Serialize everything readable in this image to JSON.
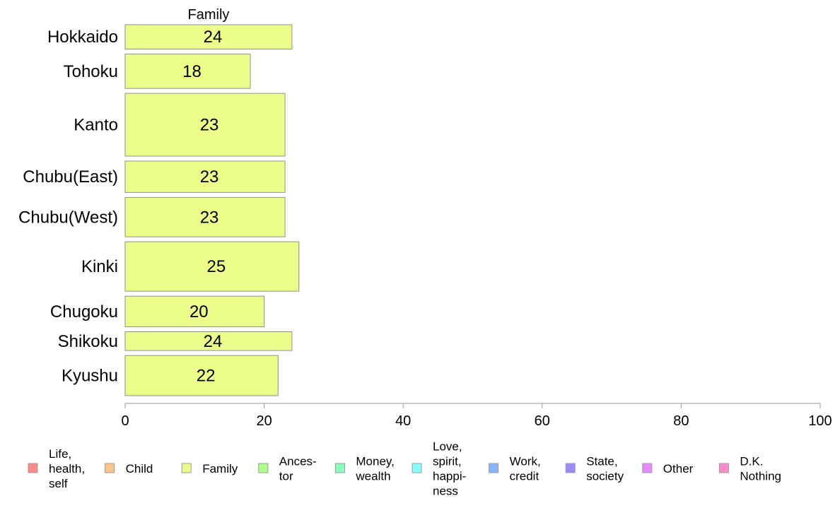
{
  "chart_data": {
    "type": "bar",
    "orientation": "horizontal",
    "title": "",
    "series_title": "Family",
    "xlabel": "",
    "ylabel": "",
    "xlim": [
      0,
      100
    ],
    "x_ticks": [
      "0",
      "20",
      "40",
      "60",
      "80",
      "100"
    ],
    "categories": [
      "Hokkaido",
      "Tohoku",
      "Kanto",
      "Chubu(East)",
      "Chubu(West)",
      "Kinki",
      "Chugoku",
      "Shikoku",
      "Kyushu"
    ],
    "values": [
      24,
      18,
      23,
      23,
      23,
      25,
      20,
      24,
      22
    ],
    "value_labels": [
      "24",
      "18",
      "23",
      "23",
      "23",
      "25",
      "20",
      "24",
      "22"
    ],
    "bar_widths_relative": [
      0.97,
      1.37,
      2.5,
      1.25,
      1.57,
      1.97,
      1.22,
      0.75,
      1.6
    ],
    "bar_color": "#ebff8a",
    "grid": false,
    "legend_position": "bottom",
    "legend": [
      {
        "lines": [
          "Life,",
          "health,",
          "self"
        ],
        "color": "#ff8a8a"
      },
      {
        "lines": [
          "Child"
        ],
        "color": "#ffc48a"
      },
      {
        "lines": [
          "Family"
        ],
        "color": "#ebff8a"
      },
      {
        "lines": [
          "Ances-",
          "tor"
        ],
        "color": "#b0ff8a"
      },
      {
        "lines": [
          "Money,",
          "wealth"
        ],
        "color": "#8affbe"
      },
      {
        "lines": [
          "Love,",
          "spirit,",
          "happi-",
          "ness"
        ],
        "color": "#8afcff"
      },
      {
        "lines": [
          "Work,",
          "credit"
        ],
        "color": "#8ab4ff"
      },
      {
        "lines": [
          "State,",
          "society"
        ],
        "color": "#9d8aff"
      },
      {
        "lines": [
          "Other"
        ],
        "color": "#e38aff"
      },
      {
        "lines": [
          "D.K.",
          "Nothing"
        ],
        "color": "#ff8ad0"
      }
    ]
  }
}
